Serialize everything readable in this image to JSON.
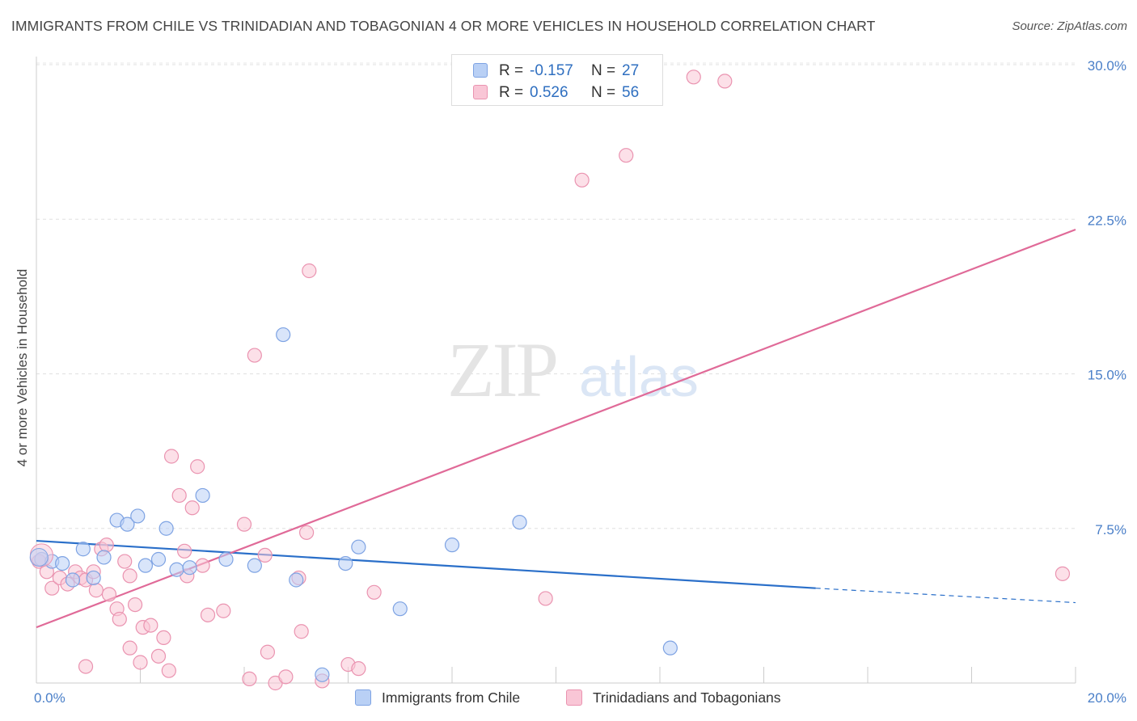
{
  "header": {
    "title": "IMMIGRANTS FROM CHILE VS TRINIDADIAN AND TOBAGONIAN 4 OR MORE VEHICLES IN HOUSEHOLD CORRELATION CHART",
    "source": "Source: ZipAtlas.com"
  },
  "watermark": {
    "zip": "ZIP",
    "atlas": "atlas"
  },
  "stats": [
    {
      "r_label": "R =",
      "r_value": "-0.157",
      "n_label": "N =",
      "n_value": "27",
      "color": "#a9c4f0",
      "border": "#6f9ae0"
    },
    {
      "r_label": "R =",
      "r_value": "0.526",
      "n_label": "N =",
      "n_value": "56",
      "color": "#f6b8cb",
      "border": "#e988a8"
    }
  ],
  "legend": [
    {
      "label": "Immigrants from Chile",
      "color": "#b9d0f5",
      "border": "#7ea3e3"
    },
    {
      "label": "Trinidadians and Tobagonians",
      "color": "#f9c6d6",
      "border": "#ea93b0"
    }
  ],
  "chart_data": {
    "type": "scatter",
    "ylabel": "4 or more Vehicles in Household",
    "xlim": [
      0,
      20
    ],
    "ylim": [
      0,
      31.5
    ],
    "x_tick_labels": [
      "0.0%",
      "20.0%"
    ],
    "y_ticks": [
      7.5,
      15.0,
      22.5,
      30.0
    ],
    "y_tick_labels": [
      "7.5%",
      "15.0%",
      "22.5%",
      "30.0%"
    ],
    "grid": true,
    "series": [
      {
        "name": "Immigrants from Chile",
        "color": "#7ea3e3",
        "fill": "#b9d0f5",
        "line_color": "#2a6fc9",
        "trend": {
          "x0": 0,
          "y0": 6.9,
          "x1": 15.0,
          "y1": 4.6,
          "dash_to_x": 20.0,
          "dash_to_y": 3.9
        },
        "points": [
          [
            0.1,
            6.0
          ],
          [
            0.3,
            5.9
          ],
          [
            0.5,
            5.8
          ],
          [
            0.7,
            5.0
          ],
          [
            0.9,
            6.5
          ],
          [
            1.1,
            5.1
          ],
          [
            1.3,
            6.1
          ],
          [
            1.55,
            7.9
          ],
          [
            1.75,
            7.7
          ],
          [
            1.95,
            8.1
          ],
          [
            2.1,
            5.7
          ],
          [
            2.35,
            6.0
          ],
          [
            2.5,
            7.5
          ],
          [
            2.7,
            5.5
          ],
          [
            2.95,
            5.6
          ],
          [
            3.2,
            9.1
          ],
          [
            3.65,
            6.0
          ],
          [
            4.2,
            5.7
          ],
          [
            4.75,
            16.9
          ],
          [
            5.0,
            5.0
          ],
          [
            5.5,
            0.4
          ],
          [
            5.95,
            5.8
          ],
          [
            6.2,
            6.6
          ],
          [
            7.0,
            3.6
          ],
          [
            8.0,
            6.7
          ],
          [
            9.3,
            7.8
          ],
          [
            12.2,
            1.7
          ]
        ]
      },
      {
        "name": "Trinidadians and Tobagonians",
        "color": "#ea93b0",
        "fill": "#f9c6d6",
        "line_color": "#e06a98",
        "trend": {
          "x0": 0,
          "y0": 2.7,
          "x1": 20.0,
          "y1": 22.0
        },
        "points": [
          [
            0.05,
            5.9
          ],
          [
            0.2,
            5.4
          ],
          [
            0.3,
            4.6
          ],
          [
            0.45,
            5.1
          ],
          [
            0.6,
            4.8
          ],
          [
            0.75,
            5.4
          ],
          [
            0.85,
            5.1
          ],
          [
            0.95,
            0.8
          ],
          [
            0.95,
            5.0
          ],
          [
            1.1,
            5.4
          ],
          [
            1.15,
            4.5
          ],
          [
            1.25,
            6.5
          ],
          [
            1.35,
            6.7
          ],
          [
            1.4,
            4.3
          ],
          [
            1.55,
            3.6
          ],
          [
            1.6,
            3.1
          ],
          [
            1.7,
            5.9
          ],
          [
            1.8,
            5.2
          ],
          [
            1.8,
            1.7
          ],
          [
            1.9,
            3.8
          ],
          [
            2.0,
            1.0
          ],
          [
            2.05,
            2.7
          ],
          [
            2.2,
            2.8
          ],
          [
            2.35,
            1.3
          ],
          [
            2.45,
            2.2
          ],
          [
            2.55,
            0.6
          ],
          [
            2.6,
            11.0
          ],
          [
            2.75,
            9.1
          ],
          [
            2.85,
            6.4
          ],
          [
            2.9,
            5.2
          ],
          [
            3.0,
            8.5
          ],
          [
            3.1,
            10.5
          ],
          [
            3.2,
            5.7
          ],
          [
            3.3,
            3.3
          ],
          [
            3.6,
            3.5
          ],
          [
            4.0,
            7.7
          ],
          [
            4.1,
            0.2
          ],
          [
            4.2,
            15.9
          ],
          [
            4.4,
            6.2
          ],
          [
            4.45,
            1.5
          ],
          [
            4.6,
            0.0
          ],
          [
            4.8,
            0.3
          ],
          [
            5.05,
            5.1
          ],
          [
            5.1,
            2.5
          ],
          [
            5.2,
            7.3
          ],
          [
            5.25,
            20.0
          ],
          [
            5.5,
            0.1
          ],
          [
            6.0,
            0.9
          ],
          [
            6.2,
            0.7
          ],
          [
            6.5,
            4.4
          ],
          [
            9.8,
            4.1
          ],
          [
            10.5,
            24.4
          ],
          [
            11.35,
            25.6
          ],
          [
            12.65,
            29.4
          ],
          [
            13.25,
            29.2
          ],
          [
            19.75,
            5.3
          ]
        ]
      }
    ]
  }
}
